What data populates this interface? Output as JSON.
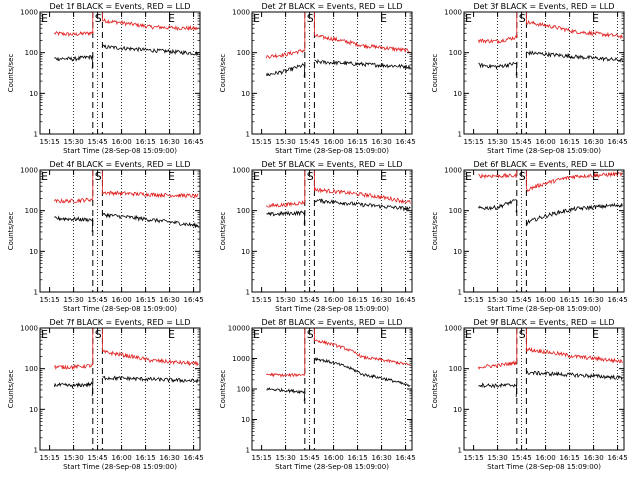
{
  "figure": {
    "xlabel": "Start Time (28-Sep-08 15:09:00)",
    "ylabel": "Counts/sec",
    "xticks": [
      "15:15",
      "15:30",
      "15:45",
      "16:00",
      "16:15",
      "16:30",
      "16:45"
    ],
    "yticks": [
      "1",
      "10",
      "100",
      "1000"
    ],
    "yticks_extended": [
      "1",
      "10",
      "100",
      "1000",
      "10000"
    ],
    "marker_s": "S",
    "marker_e": "E",
    "colors": {
      "events": "#000000",
      "lld": "#e02020"
    }
  },
  "chart_data": [
    {
      "type": "line",
      "title": "Det 1f BLACK = Events, RED = LLD",
      "ylim": [
        1,
        1000
      ],
      "x_range_min": [
        9,
        99
      ],
      "gap_min": [
        33,
        39
      ],
      "series": [
        {
          "name": "Events",
          "before": [
            72,
            70,
            80
          ],
          "after": [
            140,
            115,
            95
          ]
        },
        {
          "name": "LLD",
          "before": [
            300,
            280,
            310
          ],
          "after": [
            620,
            430,
            390
          ]
        }
      ]
    },
    {
      "type": "line",
      "title": "Det 2f BLACK = Events, RED = LLD",
      "ylim": [
        1,
        1000
      ],
      "x_range_min": [
        9,
        99
      ],
      "gap_min": [
        33,
        39
      ],
      "series": [
        {
          "name": "Events",
          "before": [
            28,
            35,
            50
          ],
          "after": [
            60,
            52,
            45
          ]
        },
        {
          "name": "LLD",
          "before": [
            80,
            90,
            115
          ],
          "after": [
            260,
            150,
            110
          ]
        }
      ]
    },
    {
      "type": "line",
      "title": "Det 3f BLACK = Events, RED = LLD",
      "ylim": [
        1,
        1000
      ],
      "x_range_min": [
        9,
        99
      ],
      "gap_min": [
        33,
        39
      ],
      "series": [
        {
          "name": "Events",
          "before": [
            50,
            45,
            55
          ],
          "after": [
            100,
            80,
            65
          ]
        },
        {
          "name": "LLD",
          "before": [
            200,
            190,
            240
          ],
          "after": [
            560,
            330,
            250
          ]
        }
      ]
    },
    {
      "type": "line",
      "title": "Det 4f BLACK = Events, RED = LLD",
      "ylim": [
        1,
        1000
      ],
      "x_range_min": [
        9,
        99
      ],
      "gap_min": [
        33,
        39
      ],
      "series": [
        {
          "name": "Events",
          "before": [
            65,
            62,
            60
          ],
          "after": [
            80,
            60,
            42
          ]
        },
        {
          "name": "LLD",
          "before": [
            170,
            175,
            190
          ],
          "after": [
            280,
            250,
            230
          ]
        }
      ]
    },
    {
      "type": "line",
      "title": "Det 5f BLACK = Events, RED = LLD",
      "ylim": [
        1,
        1000
      ],
      "x_range_min": [
        9,
        99
      ],
      "gap_min": [
        33,
        39
      ],
      "series": [
        {
          "name": "Events",
          "before": [
            80,
            85,
            90
          ],
          "after": [
            180,
            140,
            110
          ]
        },
        {
          "name": "LLD",
          "before": [
            130,
            140,
            160
          ],
          "after": [
            330,
            250,
            160
          ]
        }
      ]
    },
    {
      "type": "line",
      "title": "Det 6f BLACK = Events, RED = LLD",
      "ylim": [
        1,
        1000
      ],
      "x_range_min": [
        9,
        99
      ],
      "gap_min": [
        33,
        39
      ],
      "series": [
        {
          "name": "Events",
          "before": [
            115,
            120,
            180
          ],
          "after": [
            50,
            110,
            140
          ]
        },
        {
          "name": "LLD",
          "before": [
            720,
            720,
            720
          ],
          "after": [
            320,
            700,
            800
          ]
        }
      ]
    },
    {
      "type": "line",
      "title": "Det 7f BLACK = Events, RED = LLD",
      "ylim": [
        1,
        1000
      ],
      "x_range_min": [
        9,
        99
      ],
      "gap_min": [
        33,
        39
      ],
      "series": [
        {
          "name": "Events",
          "before": [
            40,
            38,
            42
          ],
          "after": [
            60,
            55,
            50
          ]
        },
        {
          "name": "LLD",
          "before": [
            110,
            110,
            120
          ],
          "after": [
            260,
            160,
            130
          ]
        }
      ]
    },
    {
      "type": "line",
      "title": "Det 8f BLACK = Events, RED = LLD",
      "ylim": [
        1,
        10000
      ],
      "x_range_min": [
        9,
        99
      ],
      "gap_min": [
        33,
        39
      ],
      "series": [
        {
          "name": "Events",
          "before": [
            100,
            90,
            80
          ],
          "after": [
            1000,
            300,
            120
          ]
        },
        {
          "name": "LLD",
          "before": [
            300,
            280,
            300
          ],
          "after": [
            4000,
            1100,
            600
          ]
        }
      ]
    },
    {
      "type": "line",
      "title": "Det 9f BLACK = Events, RED = LLD",
      "ylim": [
        1,
        1000
      ],
      "x_range_min": [
        9,
        99
      ],
      "gap_min": [
        33,
        39
      ],
      "series": [
        {
          "name": "Events",
          "before": [
            40,
            38,
            40
          ],
          "after": [
            80,
            70,
            60
          ]
        },
        {
          "name": "LLD",
          "before": [
            110,
            120,
            140
          ],
          "after": [
            300,
            200,
            150
          ]
        }
      ]
    }
  ]
}
